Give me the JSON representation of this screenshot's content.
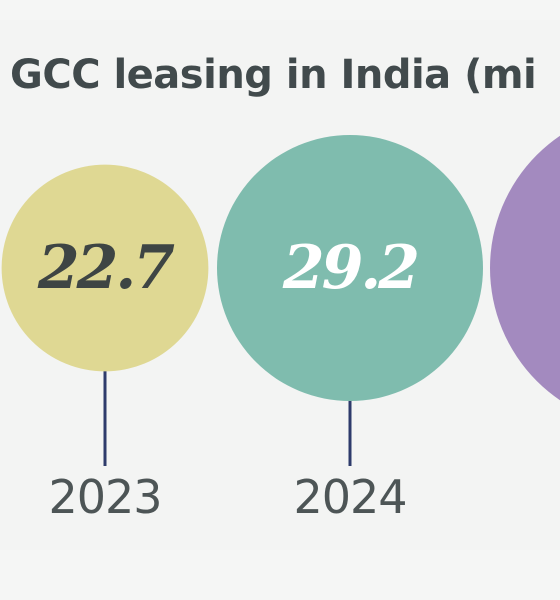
{
  "chart_data": {
    "type": "bubble",
    "title": "GCC leasing in India (mi",
    "categories": [
      "2023",
      "2024",
      ""
    ],
    "values": [
      22.7,
      29.2,
      null
    ],
    "value_labels": [
      "22.7",
      "29.2",
      ""
    ],
    "colors": [
      "#dfd893",
      "#7fbcae",
      "#a38abf"
    ],
    "label_colors": [
      "#3e4544",
      "#ffffff",
      "#ffffff"
    ],
    "connector_color": "#2e3b6b",
    "year_label_color": "#4d5556",
    "legend": "none",
    "grid": false
  }
}
